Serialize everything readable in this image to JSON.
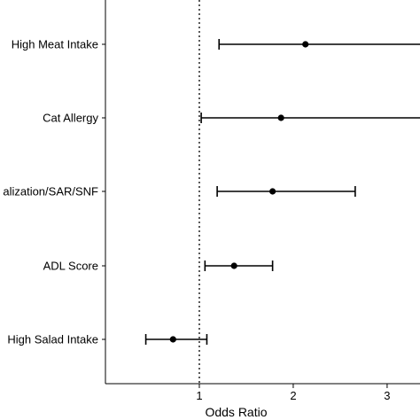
{
  "chart_data": {
    "type": "forest",
    "xlabel": "Odds Ratio",
    "x_ticks": [
      1,
      2,
      3
    ],
    "xlim": [
      0.0,
      3.35
    ],
    "reference_line": 1,
    "grid": false,
    "categories": [
      "High Meat Intake",
      "Cat Allergy",
      "alization/SAR/SNF",
      "ADL Score",
      "High Salad Intake"
    ],
    "estimates": [
      2.13,
      1.87,
      1.78,
      1.37,
      0.72
    ],
    "ci_lower": [
      1.21,
      1.02,
      1.19,
      1.06,
      0.43
    ],
    "ci_upper": [
      3.5,
      3.5,
      2.66,
      1.78,
      1.08
    ]
  }
}
